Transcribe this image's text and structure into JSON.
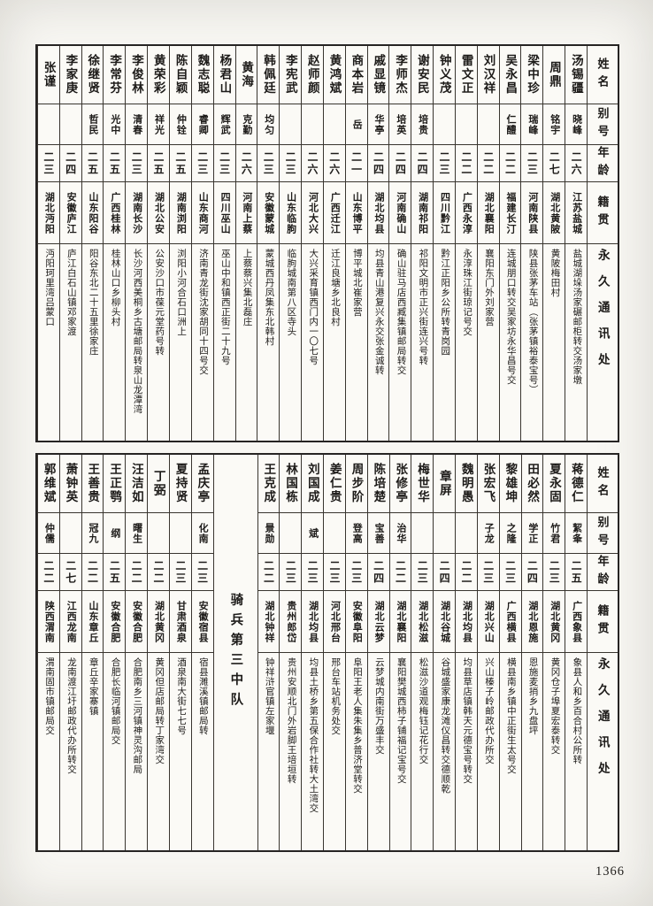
{
  "page_number": "1366",
  "section_title": "骑兵第三中队",
  "column_headers": {
    "name": "姓名",
    "alias": "别号",
    "age": "年龄",
    "origin": "籍贯",
    "address": "永久通讯处"
  },
  "tables": [
    {
      "id": "top",
      "entries": [
        {
          "name": "汤锡疆",
          "alias": "晓峰",
          "age": "二六",
          "origin": "江苏盐城",
          "address": "盐城湖垛汤家碾邮柜转交汤家墩"
        },
        {
          "name": "周鼎",
          "alias": "铭宇",
          "age": "二七",
          "origin": "湖北黄陂",
          "address": "黄陂梅田村"
        },
        {
          "name": "梁中珍",
          "alias": "瑞峰",
          "age": "二三",
          "origin": "河南陕县",
          "address": "陕县张茅车站（张茅镇裕泰宝号）"
        },
        {
          "name": "吴永昌",
          "alias": "仁醴",
          "age": "二二",
          "origin": "福建长汀",
          "address": "连城朋口转交吴家坊永华昌号交"
        },
        {
          "name": "刘汉祥",
          "alias": "",
          "age": "二二",
          "origin": "湖北襄阳",
          "address": "襄阳东门外刘家营"
        },
        {
          "name": "雷文正",
          "alias": "",
          "age": "二二",
          "origin": "广西永淳",
          "address": "永淳珠江街琼记号交"
        },
        {
          "name": "钟义茂",
          "alias": "",
          "age": "二三",
          "origin": "四川黔江",
          "address": "黔江正阳乡公所转青岗园"
        },
        {
          "name": "谢安民",
          "alias": "培贵",
          "age": "二四",
          "origin": "湖南祁阳",
          "address": "祁阳文明市正兴街连兴号转"
        },
        {
          "name": "李师杰",
          "alias": "培英",
          "age": "二四",
          "origin": "河南确山",
          "address": "确山驻马店西臧集镇邮局转交"
        },
        {
          "name": "戚显镜",
          "alias": "华亭",
          "age": "二四",
          "origin": "湖北均县",
          "address": "均县青山港复兴永交张金诚转"
        },
        {
          "name": "商本岩",
          "alias": "岳",
          "age": "二一",
          "origin": "山东博平",
          "address": "博平城北崔家营"
        },
        {
          "name": "黄鸿斌",
          "alias": "",
          "age": "二六",
          "origin": "广西迁江",
          "address": "迁江良塘乡北良村"
        },
        {
          "name": "赵师颜",
          "alias": "",
          "age": "二六",
          "origin": "河北大兴",
          "address": "大兴采育镇西门内一〇七号"
        },
        {
          "name": "李宪武",
          "alias": "",
          "age": "二三",
          "origin": "山东临朐",
          "address": "临朐城南第八区寺头"
        },
        {
          "name": "韩佩廷",
          "alias": "均匀",
          "age": "二三",
          "origin": "安徽蒙城",
          "address": "蒙城西丹凤集东北韩村"
        },
        {
          "name": "黄海",
          "alias": "克勤",
          "age": "二六",
          "origin": "河南上蔡",
          "address": "上蔡蔡兴集北磊庄"
        },
        {
          "name": "杨君山",
          "alias": "辉武",
          "age": "二三",
          "origin": "四川巫山",
          "address": "巫山中和镇西正街二十九号"
        },
        {
          "name": "魏志聪",
          "alias": "睿卿",
          "age": "二三",
          "origin": "山东商河",
          "address": "济南青龙街沈家胡同十四号交"
        },
        {
          "name": "陈自颖",
          "alias": "仲铨",
          "age": "二五",
          "origin": "湖南浏阳",
          "address": "浏阳小河合石口洲上"
        },
        {
          "name": "黄荣彩",
          "alias": "祥光",
          "age": "二五",
          "origin": "湖北公安",
          "address": "公安沙口市葆元堂药号转"
        },
        {
          "name": "李俊林",
          "alias": "清春",
          "age": "二三",
          "origin": "湖南长沙",
          "address": "长沙河西美桐乡古塘邮局转泉山龙潭湾"
        },
        {
          "name": "李常芬",
          "alias": "光中",
          "age": "二五",
          "origin": "广西桂林",
          "address": "桂林山口乡柳头村"
        },
        {
          "name": "徐继贤",
          "alias": "哲民",
          "age": "二五",
          "origin": "山东阳谷",
          "address": "阳谷东北二十五里徐家庄"
        },
        {
          "name": "李家庚",
          "alias": "",
          "age": "二四",
          "origin": "安徽庐江",
          "address": "庐江白石山镇邓家渡"
        },
        {
          "name": "张谨",
          "alias": "",
          "age": "二三",
          "origin": "湖北沔阳",
          "address": "沔阳珂里湾吕蒙口"
        }
      ]
    },
    {
      "id": "bottom",
      "divider_after": 14,
      "entries": [
        {
          "name": "蒋德仁",
          "alias": "絜夆",
          "age": "二五",
          "origin": "广西象县",
          "address": "象县人和乡百合村公所转"
        },
        {
          "name": "夏永固",
          "alias": "竹君",
          "age": "二三",
          "origin": "湖北黄冈",
          "address": "黄冈仓子埠夏宏泰转交"
        },
        {
          "name": "田必然",
          "alias": "学正",
          "age": "二四",
          "origin": "湖北恩施",
          "address": "恩施麦捎乡九盘坪"
        },
        {
          "name": "黎雄坤",
          "alias": "之隆",
          "age": "二三",
          "origin": "广西横县",
          "address": "横县南乡镇中正街生太号交"
        },
        {
          "name": "张宏飞",
          "alias": "子龙",
          "age": "二三",
          "origin": "湖北兴山",
          "address": "兴山榛子岭邮政代办所交"
        },
        {
          "name": "魏明愚",
          "alias": "",
          "age": "二二",
          "origin": "湖北均县",
          "address": "均县草店镇韩天元德宝号转交"
        },
        {
          "name": "章屏",
          "alias": "",
          "age": "二四",
          "origin": "湖北谷城",
          "address": "谷城盛家康龙滩仪昌转交德顺乾"
        },
        {
          "name": "梅世华",
          "alias": "",
          "age": "二三",
          "origin": "湖北松滋",
          "address": "松滋沙道观梅钰记花行交"
        },
        {
          "name": "张修亭",
          "alias": "治华",
          "age": "二二",
          "origin": "湖北襄阳",
          "address": "襄阳樊城西柿子铺福记宝号交"
        },
        {
          "name": "陈培楚",
          "alias": "宝善",
          "age": "二四",
          "origin": "湖北云梦",
          "address": "云梦城内南街万盛丰交"
        },
        {
          "name": "周步阶",
          "alias": "登高",
          "age": "二三",
          "origin": "安徽阜阳",
          "address": "阜阳王老人集朱集乡普济堂转交"
        },
        {
          "name": "姜仁贵",
          "alias": "",
          "age": "二三",
          "origin": "河北邢台",
          "address": "邢台车站机务处交"
        },
        {
          "name": "刘国成",
          "alias": "斌",
          "age": "二三",
          "origin": "湖北均县",
          "address": "均县土桥乡第五保合作社转大土湾交"
        },
        {
          "name": "林国栋",
          "alias": "",
          "age": "二三",
          "origin": "贵州郎岱",
          "address": "贵州安顺北门外岩脚王培垣转"
        },
        {
          "name": "王克成",
          "alias": "景勋",
          "age": "二二",
          "origin": "湖北钟祥",
          "address": "钟祥浒官镇左家堰"
        },
        {
          "name": "孟庆亭",
          "alias": "化南",
          "age": "二三",
          "origin": "安徽宿县",
          "address": "宿县濉溪镇邮局转"
        },
        {
          "name": "夏持贤",
          "alias": "",
          "age": "二三",
          "origin": "甘肃酒泉",
          "address": "酒泉南大街七七号"
        },
        {
          "name": "丁弼",
          "alias": "",
          "age": "二二",
          "origin": "湖北黄冈",
          "address": "黄冈但店邮局转丁家湾交"
        },
        {
          "name": "汪洁如",
          "alias": "曙生",
          "age": "二二",
          "origin": "安徽合肥",
          "address": "合肥南乡三河镇神灵沟邮局"
        },
        {
          "name": "王正鹗",
          "alias": "纲",
          "age": "二五",
          "origin": "安徽合肥",
          "address": "合肥长临河镇邮局交"
        },
        {
          "name": "王善贵",
          "alias": "冠九",
          "age": "二二",
          "origin": "山东章丘",
          "address": "章丘辛家寨镇"
        },
        {
          "name": "萧钟英",
          "alias": "",
          "age": "二七",
          "origin": "江西龙南",
          "address": "龙南渡江圩邮政代办所转交"
        },
        {
          "name": "郭维斌",
          "alias": "仲儒",
          "age": "二二",
          "origin": "陕西渭南",
          "address": "渭南固市镇邮局交"
        }
      ]
    }
  ]
}
